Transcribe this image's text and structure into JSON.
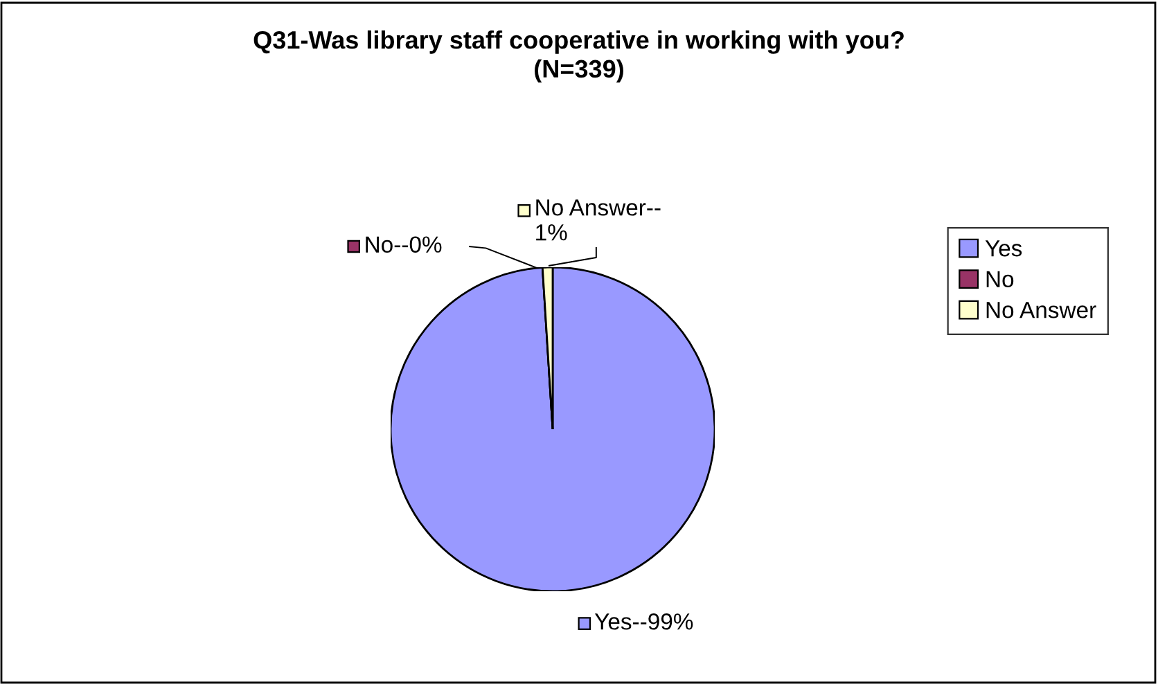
{
  "chart_data": {
    "type": "pie",
    "title": "Q31-Was library staff cooperative in working with you?\n(N=339)",
    "categories": [
      "Yes",
      "No",
      "No Answer"
    ],
    "values": [
      99,
      0,
      1
    ],
    "colors": [
      "#9999ff",
      "#993366",
      "#ffffcc"
    ],
    "value_labels": [
      "Yes--99%",
      "No--0%",
      "No Answer--\n1%"
    ],
    "legend": "right"
  }
}
